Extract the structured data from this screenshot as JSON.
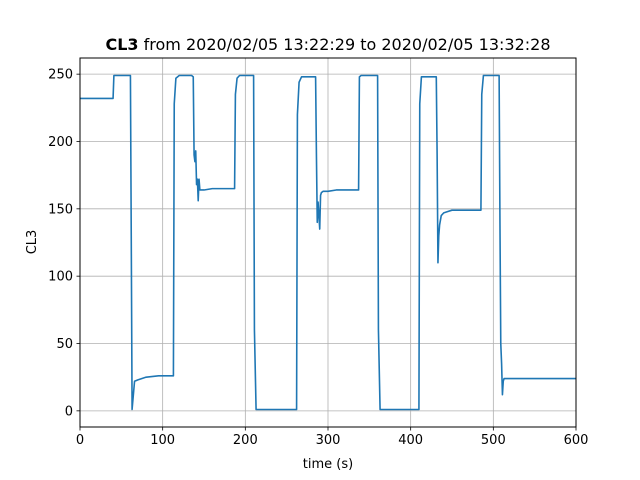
{
  "chart_data": {
    "type": "line",
    "title": {
      "bold": "CL3",
      "rest": " from 2020/02/05 13:22:29 to 2020/02/05 13:32:28"
    },
    "xlabel": "time (s)",
    "ylabel": "CL3",
    "xlim": [
      0,
      600
    ],
    "ylim": [
      -12,
      262
    ],
    "xticks": [
      0,
      100,
      200,
      300,
      400,
      500,
      600
    ],
    "yticks": [
      0,
      50,
      100,
      150,
      200,
      250
    ],
    "grid": true,
    "legend": "none",
    "series": [
      {
        "color": "#1f77b4",
        "x": [
          0,
          40,
          41,
          61,
          62,
          63,
          66,
          70,
          80,
          95,
          113,
          114,
          116,
          120,
          135,
          137,
          138,
          139,
          140,
          141,
          142,
          143,
          144,
          145,
          150,
          160,
          187,
          188,
          190,
          193,
          210,
          211,
          213,
          262,
          263,
          265,
          268,
          285,
          286,
          287,
          288,
          290,
          291,
          292,
          294,
          300,
          310,
          337,
          338,
          340,
          360,
          361,
          363,
          410,
          411,
          413,
          431,
          432,
          433,
          434,
          435,
          437,
          440,
          445,
          450,
          485,
          486,
          488,
          507,
          508,
          509,
          510,
          511,
          512,
          513,
          515,
          520,
          540,
          560,
          580,
          600
        ],
        "y": [
          232,
          232,
          249,
          249,
          130,
          1,
          22,
          23,
          25,
          26,
          26,
          228,
          247,
          249,
          249,
          248,
          190,
          185,
          193,
          168,
          172,
          156,
          172,
          164,
          164,
          165,
          165,
          235,
          247,
          249,
          249,
          60,
          1,
          1,
          220,
          244,
          248,
          248,
          190,
          140,
          155,
          135,
          160,
          162,
          163,
          163,
          164,
          164,
          248,
          249,
          249,
          60,
          1,
          1,
          228,
          248,
          248,
          190,
          110,
          130,
          138,
          145,
          147,
          148,
          149,
          149,
          235,
          249,
          249,
          140,
          50,
          35,
          12,
          22,
          24,
          24,
          24,
          24,
          24,
          24,
          24
        ]
      }
    ]
  }
}
